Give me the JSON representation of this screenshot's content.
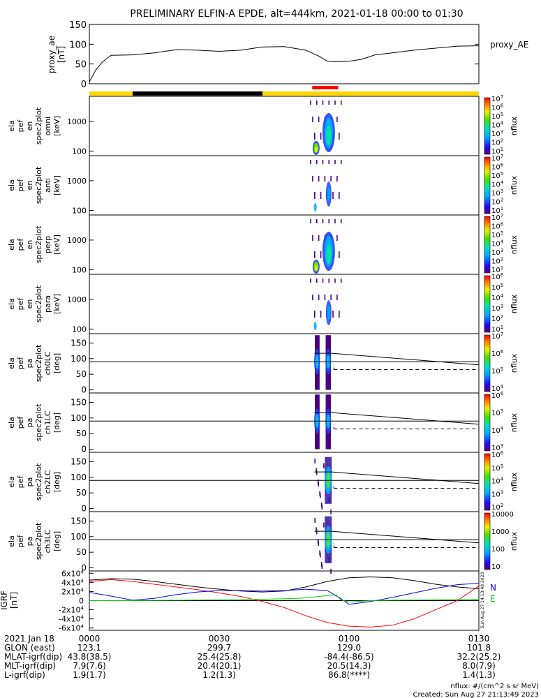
{
  "title": "PRELIMINARY ELFIN-A EPDE, alt=444km, 2021-01-18 00:00 to 01:30",
  "time_axis": {
    "start_min": 0,
    "end_min": 90,
    "ticks": [
      0,
      30,
      60,
      90
    ],
    "date_label": "2021 Jan 18"
  },
  "proxy_ae": {
    "ylabel": [
      "proxy_ae",
      "[nT]"
    ],
    "legend": "proxy_AE",
    "ylim": [
      0,
      150
    ],
    "yticks": [
      0,
      50,
      100,
      150
    ],
    "series": {
      "t": [
        0,
        1.5,
        3,
        5,
        10,
        15,
        20,
        25,
        30,
        35,
        40,
        45,
        50,
        53,
        55,
        57,
        60,
        63,
        66,
        70,
        75,
        80,
        85,
        90
      ],
      "v": [
        5,
        35,
        55,
        72,
        73,
        78,
        86,
        85,
        82,
        85,
        93,
        94,
        85,
        70,
        57,
        56,
        57,
        62,
        73,
        78,
        85,
        90,
        95,
        96
      ]
    }
  },
  "status_bar": {
    "segments": [
      {
        "start": 0,
        "end": 10,
        "color": "#ffd700"
      },
      {
        "start": 10,
        "end": 40,
        "color": "#000000"
      },
      {
        "start": 40,
        "end": 90,
        "color": "#ffd700"
      }
    ],
    "marker": {
      "start": 51.5,
      "end": 57.5,
      "color": "#ff0000"
    }
  },
  "spectrograms": [
    {
      "name": "omni",
      "type": "energy",
      "ylabel": [
        "ela",
        "pef",
        "en",
        "spec2plot",
        "omni",
        "[keV]"
      ],
      "yticks": [
        100,
        1000
      ],
      "ytick_labels": [
        "100",
        "1000"
      ],
      "cbar": {
        "label": "nflux",
        "ticks": [
          "10",
          "10",
          "10",
          "10",
          "10",
          "10",
          "10"
        ],
        "exps": [
          "1",
          "2",
          "3",
          "4",
          "5",
          "6",
          "7"
        ]
      }
    },
    {
      "name": "anti",
      "type": "energy",
      "ylabel": [
        "ela",
        "pef",
        "en",
        "spec2plot",
        "anti",
        "[keV]"
      ],
      "yticks": [
        100,
        1000
      ],
      "ytick_labels": [
        "100",
        "1000"
      ],
      "cbar": {
        "label": "nflux",
        "ticks": [
          "10",
          "10",
          "10",
          "10",
          "10",
          "10",
          "10"
        ],
        "exps": [
          "1",
          "2",
          "3",
          "4",
          "5",
          "6",
          "7"
        ]
      }
    },
    {
      "name": "perp",
      "type": "energy",
      "ylabel": [
        "ela",
        "pef",
        "en",
        "spec2plot",
        "perp",
        "[keV]"
      ],
      "yticks": [
        100,
        1000
      ],
      "ytick_labels": [
        "100",
        "1000"
      ],
      "cbar": {
        "label": "nflux",
        "ticks": [
          "10",
          "10",
          "10",
          "10",
          "10",
          "10",
          "10"
        ],
        "exps": [
          "1",
          "2",
          "3",
          "4",
          "5",
          "6",
          "7"
        ]
      }
    },
    {
      "name": "para",
      "type": "energy",
      "ylabel": [
        "ela",
        "pef",
        "en",
        "spec2plot",
        "para",
        "[keV]"
      ],
      "yticks": [
        100,
        1000
      ],
      "ytick_labels": [
        "100",
        "1000"
      ],
      "cbar": {
        "label": "nflux",
        "ticks": [
          "10",
          "10",
          "10",
          "10",
          "10",
          "10"
        ],
        "exps": [
          "1",
          "2",
          "3",
          "4",
          "5",
          "6"
        ]
      }
    },
    {
      "name": "ch0LC",
      "type": "pa",
      "ylabel": [
        "ela",
        "pef",
        "pa",
        "spec2plot",
        "ch0LC",
        "[deg]"
      ],
      "yticks": [
        0,
        50,
        100,
        150
      ],
      "ytick_labels": [
        "0",
        "50",
        "100",
        "150"
      ],
      "cbar": {
        "label": "nflux",
        "ticks": [
          "10",
          "10",
          "10",
          "10"
        ],
        "exps": [
          "4",
          "5",
          "6",
          "7"
        ]
      }
    },
    {
      "name": "ch1LC",
      "type": "pa",
      "ylabel": [
        "ela",
        "pef",
        "pa",
        "spec2plot",
        "ch1LC",
        "[deg]"
      ],
      "yticks": [
        0,
        50,
        100,
        150
      ],
      "ytick_labels": [
        "0",
        "50",
        "100",
        "150"
      ],
      "cbar": {
        "label": "nflux",
        "ticks": [
          "10",
          "10",
          "10",
          "10"
        ],
        "exps": [
          "3",
          "4",
          "5",
          "6"
        ]
      }
    },
    {
      "name": "ch2LC",
      "type": "pa",
      "ylabel": [
        "ela",
        "pef",
        "pa",
        "spec2plot",
        "ch2LC",
        "[deg]"
      ],
      "yticks": [
        0,
        50,
        100,
        150
      ],
      "ytick_labels": [
        "0",
        "50",
        "100",
        "150"
      ],
      "cbar": {
        "label": "nflux",
        "ticks": [
          "10",
          "10",
          "10",
          "10",
          "10"
        ],
        "exps": [
          "2",
          "3",
          "4",
          "5",
          "6"
        ]
      }
    },
    {
      "name": "ch3LC",
      "type": "pa",
      "ylabel": [
        "ela",
        "pef",
        "pa",
        "spec2plot",
        "ch3LC",
        "[deg]"
      ],
      "yticks": [
        0,
        50,
        100,
        150
      ],
      "ytick_labels": [
        "0",
        "50",
        "100",
        "150"
      ],
      "cbar": {
        "label": "nflux",
        "ticks": [
          "10",
          "100",
          "1000",
          "10000"
        ],
        "exps": [
          "",
          "",
          "",
          ""
        ]
      }
    }
  ],
  "igrf": {
    "ylabel": [
      "IGRF",
      "[nT]"
    ],
    "ylim": [
      -65000,
      65000
    ],
    "yticks": [
      -60000,
      -40000,
      -20000,
      0,
      20000,
      40000,
      60000
    ],
    "ytick_labels": [
      "-6x10",
      "-4x10",
      "-2x10",
      "0",
      "2x10",
      "4x10",
      "6x10"
    ],
    "ytick_exps": [
      "4",
      "4",
      "4",
      "",
      "4",
      "4",
      "4"
    ],
    "legend": [
      {
        "label": "N",
        "color": "#0000ff"
      },
      {
        "label": "E",
        "color": "#00cc00"
      }
    ],
    "series": [
      {
        "color": "#000000",
        "t": [
          0,
          5,
          10,
          15,
          20,
          25,
          30,
          35,
          40,
          45,
          50,
          55,
          60,
          65,
          70,
          75,
          80,
          85,
          90
        ],
        "v": [
          45000,
          48000,
          47000,
          42000,
          36000,
          30000,
          25000,
          21000,
          19000,
          21000,
          30000,
          42000,
          50000,
          52000,
          50000,
          44000,
          36000,
          30000,
          26000
        ]
      },
      {
        "color": "#ff0000",
        "t": [
          0,
          5,
          10,
          15,
          20,
          25,
          30,
          35,
          40,
          45,
          50,
          55,
          60,
          65,
          70,
          75,
          80,
          85,
          90
        ],
        "v": [
          42000,
          46000,
          42000,
          36000,
          30000,
          24000,
          17000,
          9000,
          -2000,
          -15000,
          -33000,
          -48000,
          -56000,
          -58000,
          -54000,
          -40000,
          -20000,
          0,
          32000
        ]
      },
      {
        "color": "#0000ff",
        "t": [
          0,
          5,
          10,
          15,
          20,
          25,
          30,
          35,
          40,
          45,
          50,
          55,
          58,
          60,
          65,
          70,
          75,
          80,
          85,
          90
        ],
        "v": [
          18000,
          10000,
          1000,
          5000,
          13000,
          19000,
          22000,
          22000,
          21000,
          22000,
          25000,
          22000,
          5000,
          -8000,
          -2000,
          7000,
          17000,
          27000,
          35000,
          38000
        ]
      },
      {
        "color": "#00cc00",
        "t": [
          0,
          10,
          20,
          30,
          40,
          45,
          50,
          53,
          55,
          57,
          58,
          60,
          65,
          70,
          80,
          90
        ],
        "v": [
          0,
          0,
          1000,
          2000,
          3000,
          4000,
          6000,
          9000,
          11000,
          13000,
          2000,
          -3000,
          0,
          1000,
          2000,
          3000
        ]
      }
    ],
    "side_stamp": "Sun Aug 27 14:13:48 2023"
  },
  "ephemeris": {
    "rows": [
      {
        "label": "GLON (east)",
        "values": [
          "123.1",
          "299.7",
          "129.0",
          "101.8"
        ]
      },
      {
        "label": "MLAT-igrf(dip)",
        "values": [
          "43.8(38.5)",
          "25.4(25.8)",
          "-84.4(-86.5)",
          "32.2(25.2)"
        ]
      },
      {
        "label": "MLT-igrf(dip)",
        "values": [
          "7.9(7.6)",
          "20.4(20.1)",
          "20.5(14.3)",
          "8.0(7.9)"
        ]
      },
      {
        "label": "L-igrf(dip)",
        "values": [
          "1.9(1.7)",
          "1.2(1.3)",
          "86.8(****)",
          "1.4(1.3)"
        ]
      }
    ],
    "time_labels": [
      "0000",
      "0030",
      "0100",
      "0130"
    ]
  },
  "footer": {
    "units": "nflux: #/(cm^2 s sr MeV)",
    "created": "Created: Sun Aug 27 21:13:49 2023"
  }
}
